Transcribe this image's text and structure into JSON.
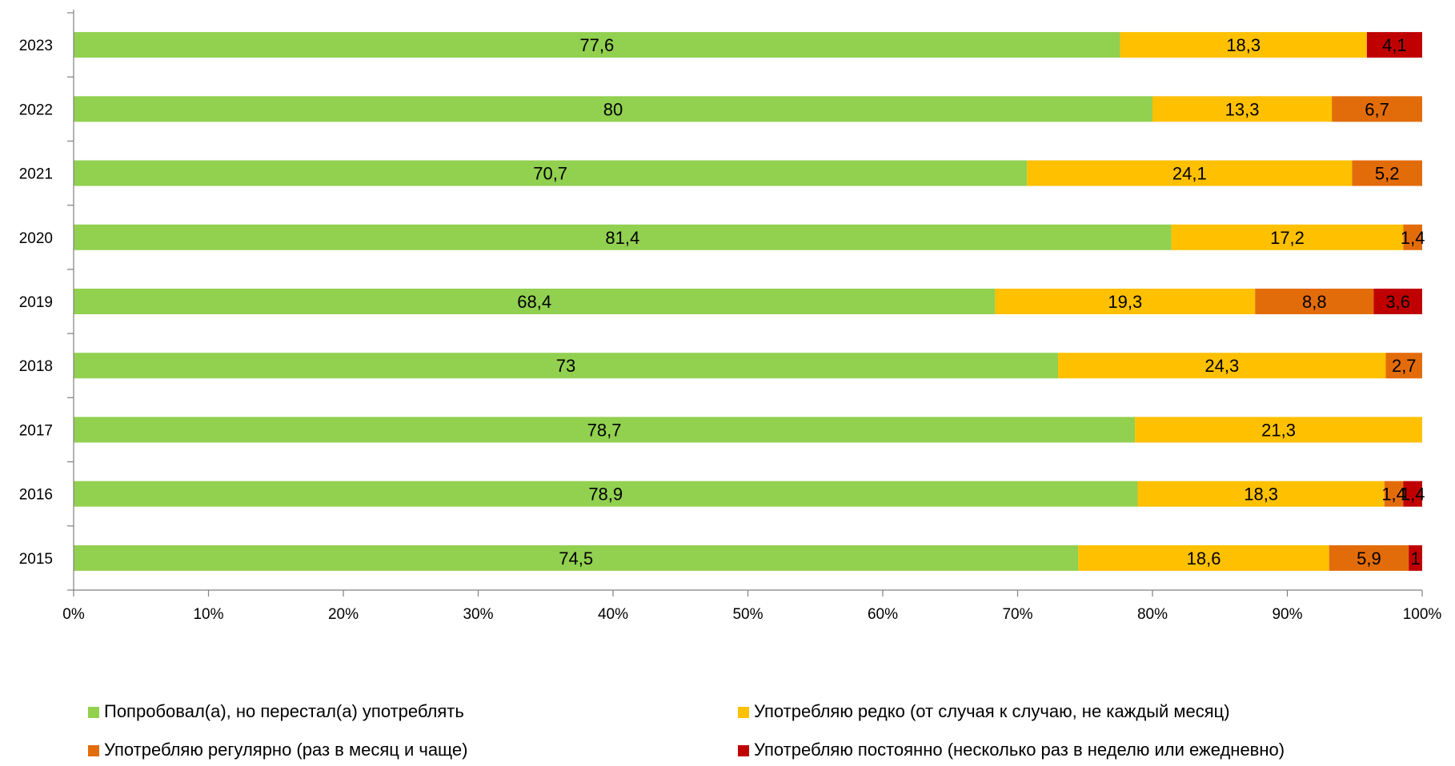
{
  "chart_data": {
    "type": "bar",
    "orientation": "horizontal",
    "stacked": "percent",
    "categories": [
      "2023",
      "2022",
      "2021",
      "2020",
      "2019",
      "2018",
      "2017",
      "2016",
      "2015"
    ],
    "series": [
      {
        "name": "Попробовал(а), но перестал(а) употреблять",
        "color": "#92d050",
        "values": [
          77.6,
          80,
          70.7,
          81.4,
          68.4,
          73,
          78.7,
          78.9,
          74.5
        ],
        "labels": [
          "77,6",
          "80",
          "70,7",
          "81,4",
          "68,4",
          "73",
          "78,7",
          "78,9",
          "74,5"
        ]
      },
      {
        "name": "Употребляю редко (от случая к случаю, не каждый месяц)",
        "color": "#ffc000",
        "values": [
          18.3,
          13.3,
          24.1,
          17.2,
          19.3,
          24.3,
          21.3,
          18.3,
          18.6
        ],
        "labels": [
          "18,3",
          "13,3",
          "24,1",
          "17,2",
          "19,3",
          "24,3",
          "21,3",
          "18,3",
          "18,6"
        ]
      },
      {
        "name": "Употребляю регулярно (раз в месяц и чаще)",
        "color": "#e36c0a",
        "values": [
          0,
          6.7,
          5.2,
          1.4,
          8.8,
          2.7,
          0,
          1.4,
          5.9
        ],
        "labels": [
          "",
          "6,7",
          "5,2",
          "1,4",
          "8,8",
          "2,7",
          "",
          "1,4",
          "5,9"
        ]
      },
      {
        "name": "Употребляю постоянно (несколько раз в неделю или ежедневно)",
        "color": "#c00000",
        "values": [
          4.1,
          0,
          0,
          0,
          3.6,
          0,
          0,
          1.4,
          1
        ],
        "labels": [
          "4,1",
          "",
          "",
          "",
          "3,6",
          "",
          "",
          "1,4",
          "1"
        ]
      }
    ],
    "x_ticks": [
      "0%",
      "10%",
      "20%",
      "30%",
      "40%",
      "50%",
      "60%",
      "70%",
      "80%",
      "90%",
      "100%"
    ],
    "xlim": [
      0,
      100
    ],
    "title": "",
    "xlabel": "",
    "ylabel": "",
    "grid": false,
    "legend_position": "bottom"
  }
}
